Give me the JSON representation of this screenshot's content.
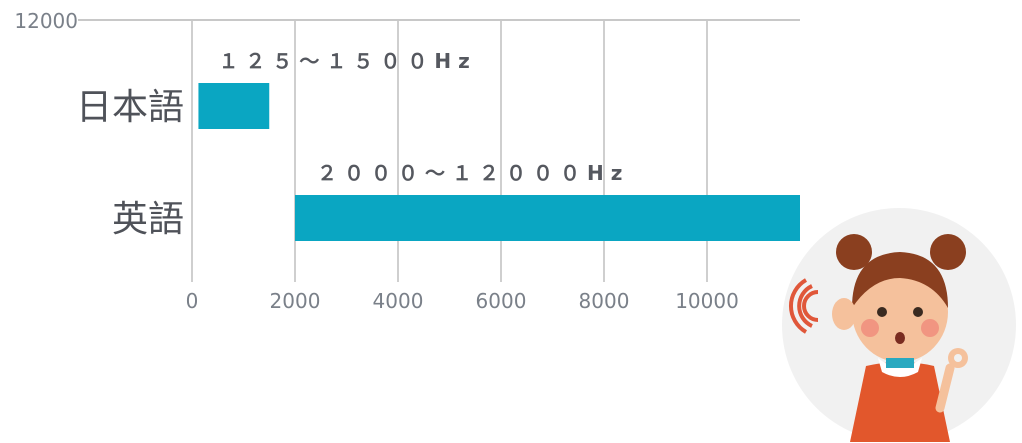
{
  "chart_data": {
    "type": "bar",
    "orientation": "horizontal",
    "categories": [
      "日本語",
      "英語"
    ],
    "ranges": [
      [
        125,
        1500
      ],
      [
        2000,
        12000
      ]
    ],
    "data_labels": [
      "１２５～１５００Hz",
      "２０００～１２０００Hz"
    ],
    "x_ticks": [
      "0",
      "2000",
      "4000",
      "6000",
      "8000",
      "10000"
    ],
    "top_label": "12000",
    "xlim": [
      0,
      12000
    ],
    "grid": true,
    "bar_color": "#0aa6c2"
  },
  "illustration": {
    "icon": "girl-listening-icon"
  }
}
